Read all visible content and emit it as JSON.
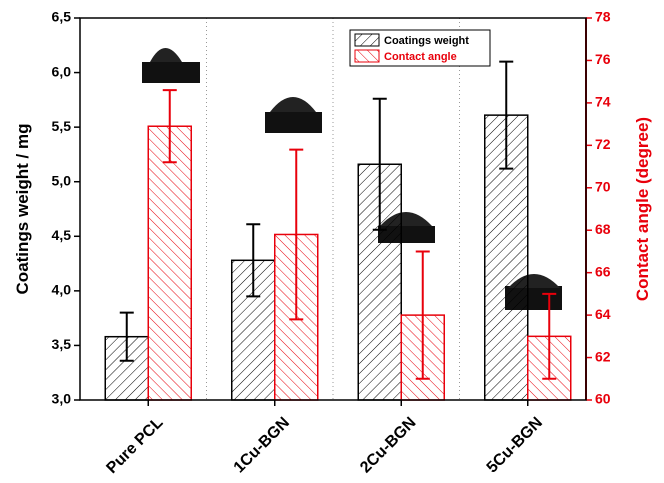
{
  "chart_data": {
    "type": "bar",
    "categories": [
      "Pure PCL",
      "1Cu-BGN",
      "2Cu-BGN",
      "5Cu-BGN"
    ],
    "y_label": "Coatings weight / mg",
    "y2_label": "Contact angle (degree)",
    "series": [
      {
        "name": "Coatings weight",
        "color": "#000000",
        "values": [
          3.58,
          4.28,
          5.16,
          5.61
        ],
        "errors": [
          0.22,
          0.33,
          0.6,
          0.49
        ]
      },
      {
        "name": "Contact angle",
        "color": "#e8000b",
        "axis": "y2",
        "values": [
          72.9,
          67.8,
          64.0,
          63.0
        ],
        "errors": [
          1.7,
          4.0,
          3.0,
          2.0
        ]
      }
    ],
    "ylim": [
      3.0,
      6.5
    ],
    "yticks": [
      {
        "value": 3.0,
        "label": "3,0"
      },
      {
        "value": 3.5,
        "label": "3,5"
      },
      {
        "value": 4.0,
        "label": "4,0"
      },
      {
        "value": 4.5,
        "label": "4,5"
      },
      {
        "value": 5.0,
        "label": "5,0"
      },
      {
        "value": 5.5,
        "label": "5,5"
      },
      {
        "value": 6.0,
        "label": "6,0"
      },
      {
        "value": 6.5,
        "label": "6,5"
      }
    ],
    "y2lim": [
      60,
      78
    ],
    "y2ticks": [
      60,
      62,
      64,
      66,
      68,
      70,
      72,
      74,
      76,
      78
    ],
    "grid": true,
    "legend": "top"
  }
}
